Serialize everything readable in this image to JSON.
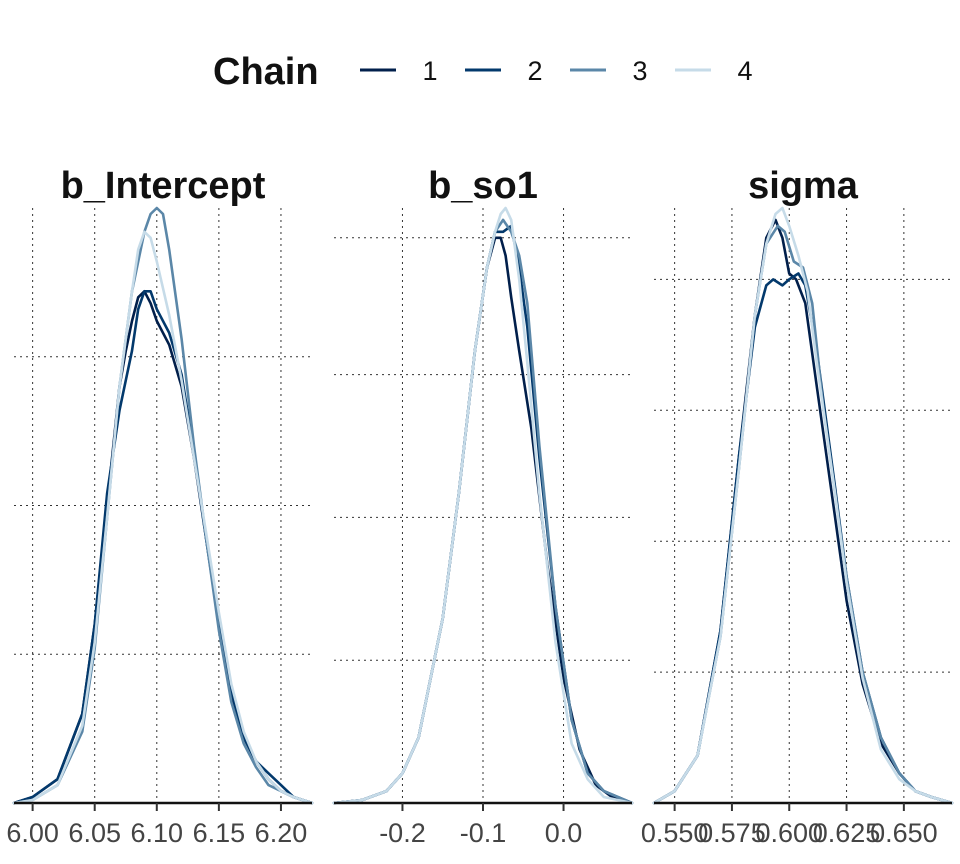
{
  "legend": {
    "title": "Chain",
    "items": [
      {
        "label": "1",
        "color": "#011f4b"
      },
      {
        "label": "2",
        "color": "#03396c"
      },
      {
        "label": "3",
        "color": "#5b87a8"
      },
      {
        "label": "4",
        "color": "#c6dbe8"
      }
    ]
  },
  "chart_data": [
    {
      "type": "line",
      "title": "b_Intercept",
      "xlabel": "",
      "ylabel": "",
      "xlim": [
        5.985,
        6.225
      ],
      "x_ticks": [
        6.0,
        6.05,
        6.1,
        6.15,
        6.2
      ],
      "x_tick_labels": [
        "6.00",
        "6.05",
        "6.10",
        "6.15",
        "6.20"
      ],
      "grid": true,
      "y_gridlines": [
        0.25,
        0.5,
        0.75
      ],
      "series": [
        {
          "name": "1",
          "x": [
            5.985,
            6.0,
            6.02,
            6.04,
            6.05,
            6.06,
            6.07,
            6.075,
            6.08,
            6.085,
            6.09,
            6.095,
            6.1,
            6.11,
            6.12,
            6.13,
            6.14,
            6.15,
            6.16,
            6.17,
            6.18,
            6.19,
            6.2,
            6.21,
            6.225
          ],
          "y": [
            0.0,
            0.01,
            0.04,
            0.15,
            0.3,
            0.5,
            0.7,
            0.76,
            0.81,
            0.85,
            0.86,
            0.84,
            0.81,
            0.77,
            0.7,
            0.58,
            0.44,
            0.3,
            0.18,
            0.11,
            0.07,
            0.04,
            0.02,
            0.01,
            0.0
          ]
        },
        {
          "name": "2",
          "x": [
            5.985,
            6.0,
            6.02,
            6.04,
            6.05,
            6.06,
            6.07,
            6.08,
            6.085,
            6.09,
            6.095,
            6.1,
            6.11,
            6.12,
            6.13,
            6.14,
            6.15,
            6.16,
            6.17,
            6.18,
            6.19,
            6.2,
            6.21,
            6.225
          ],
          "y": [
            0.0,
            0.01,
            0.04,
            0.15,
            0.3,
            0.52,
            0.66,
            0.76,
            0.83,
            0.86,
            0.86,
            0.83,
            0.79,
            0.72,
            0.59,
            0.44,
            0.3,
            0.19,
            0.11,
            0.07,
            0.05,
            0.03,
            0.01,
            0.0
          ]
        },
        {
          "name": "3",
          "x": [
            5.985,
            6.0,
            6.02,
            6.04,
            6.05,
            6.06,
            6.07,
            6.08,
            6.09,
            6.095,
            6.1,
            6.105,
            6.11,
            6.12,
            6.13,
            6.14,
            6.15,
            6.16,
            6.17,
            6.18,
            6.19,
            6.2,
            6.21,
            6.225
          ],
          "y": [
            0.0,
            0.005,
            0.03,
            0.12,
            0.26,
            0.48,
            0.7,
            0.86,
            0.96,
            0.99,
            1.0,
            0.99,
            0.93,
            0.78,
            0.6,
            0.44,
            0.29,
            0.17,
            0.1,
            0.06,
            0.03,
            0.02,
            0.01,
            0.0
          ]
        },
        {
          "name": "4",
          "x": [
            5.985,
            6.0,
            6.02,
            6.04,
            6.05,
            6.06,
            6.07,
            6.08,
            6.085,
            6.09,
            6.095,
            6.1,
            6.11,
            6.12,
            6.13,
            6.14,
            6.15,
            6.16,
            6.17,
            6.18,
            6.19,
            6.2,
            6.21,
            6.225
          ],
          "y": [
            0.0,
            0.005,
            0.03,
            0.13,
            0.27,
            0.48,
            0.7,
            0.86,
            0.93,
            0.96,
            0.95,
            0.91,
            0.82,
            0.71,
            0.58,
            0.45,
            0.32,
            0.2,
            0.12,
            0.07,
            0.04,
            0.02,
            0.01,
            0.0
          ]
        }
      ]
    },
    {
      "type": "line",
      "title": "b_so1",
      "xlabel": "",
      "ylabel": "",
      "xlim": [
        -0.285,
        0.085
      ],
      "x_ticks": [
        -0.2,
        -0.1,
        0.0
      ],
      "x_tick_labels": [
        "-0.2",
        "-0.1",
        "0.0"
      ],
      "grid": true,
      "y_gridlines": [
        0.24,
        0.48,
        0.72,
        0.95
      ],
      "series": [
        {
          "name": "1",
          "x": [
            -0.285,
            -0.25,
            -0.22,
            -0.2,
            -0.18,
            -0.15,
            -0.13,
            -0.11,
            -0.095,
            -0.085,
            -0.078,
            -0.072,
            -0.065,
            -0.055,
            -0.04,
            -0.02,
            0.0,
            0.02,
            0.04,
            0.06,
            0.085
          ],
          "y": [
            0.0,
            0.005,
            0.02,
            0.05,
            0.11,
            0.31,
            0.52,
            0.76,
            0.9,
            0.95,
            0.95,
            0.92,
            0.85,
            0.76,
            0.63,
            0.4,
            0.21,
            0.09,
            0.03,
            0.01,
            0.0
          ]
        },
        {
          "name": "2",
          "x": [
            -0.285,
            -0.25,
            -0.22,
            -0.2,
            -0.18,
            -0.15,
            -0.13,
            -0.11,
            -0.095,
            -0.085,
            -0.075,
            -0.065,
            -0.055,
            -0.045,
            -0.03,
            -0.01,
            0.01,
            0.03,
            0.05,
            0.085
          ],
          "y": [
            0.0,
            0.005,
            0.02,
            0.05,
            0.11,
            0.31,
            0.52,
            0.76,
            0.9,
            0.96,
            0.96,
            0.97,
            0.9,
            0.8,
            0.58,
            0.33,
            0.14,
            0.05,
            0.02,
            0.0
          ]
        },
        {
          "name": "3",
          "x": [
            -0.285,
            -0.25,
            -0.22,
            -0.2,
            -0.18,
            -0.15,
            -0.13,
            -0.11,
            -0.095,
            -0.085,
            -0.075,
            -0.065,
            -0.055,
            -0.045,
            -0.03,
            -0.01,
            0.01,
            0.03,
            0.05,
            0.085
          ],
          "y": [
            0.0,
            0.005,
            0.02,
            0.05,
            0.11,
            0.31,
            0.52,
            0.76,
            0.9,
            0.96,
            0.98,
            0.96,
            0.92,
            0.84,
            0.6,
            0.33,
            0.14,
            0.05,
            0.02,
            0.0
          ]
        },
        {
          "name": "4",
          "x": [
            -0.285,
            -0.25,
            -0.22,
            -0.2,
            -0.18,
            -0.15,
            -0.13,
            -0.11,
            -0.095,
            -0.085,
            -0.078,
            -0.072,
            -0.065,
            -0.055,
            -0.045,
            -0.03,
            -0.01,
            0.01,
            0.03,
            0.05,
            0.085
          ],
          "y": [
            0.0,
            0.005,
            0.02,
            0.05,
            0.11,
            0.31,
            0.52,
            0.76,
            0.9,
            0.96,
            0.99,
            1.0,
            0.98,
            0.88,
            0.74,
            0.52,
            0.27,
            0.1,
            0.04,
            0.01,
            0.0
          ]
        }
      ]
    },
    {
      "type": "line",
      "title": "sigma",
      "xlabel": "",
      "ylabel": "",
      "xlim": [
        0.541,
        0.671
      ],
      "x_ticks": [
        0.55,
        0.575,
        0.6,
        0.625,
        0.65
      ],
      "x_tick_labels": [
        "0.550",
        "0.575",
        "0.600",
        "0.625",
        "0.650"
      ],
      "grid": true,
      "y_gridlines": [
        0.22,
        0.44,
        0.66,
        0.88
      ],
      "series": [
        {
          "name": "1",
          "x": [
            0.541,
            0.55,
            0.56,
            0.57,
            0.578,
            0.585,
            0.59,
            0.594,
            0.597,
            0.6,
            0.603,
            0.607,
            0.612,
            0.62,
            0.625,
            0.632,
            0.64,
            0.648,
            0.655,
            0.662,
            0.671
          ],
          "y": [
            0.0,
            0.02,
            0.08,
            0.29,
            0.58,
            0.82,
            0.95,
            0.98,
            0.95,
            0.89,
            0.88,
            0.84,
            0.7,
            0.48,
            0.34,
            0.2,
            0.1,
            0.05,
            0.02,
            0.01,
            0.0
          ]
        },
        {
          "name": "2",
          "x": [
            0.541,
            0.55,
            0.56,
            0.57,
            0.578,
            0.585,
            0.59,
            0.593,
            0.597,
            0.6,
            0.604,
            0.607,
            0.612,
            0.62,
            0.625,
            0.632,
            0.64,
            0.648,
            0.655,
            0.662,
            0.671
          ],
          "y": [
            0.0,
            0.02,
            0.08,
            0.29,
            0.58,
            0.8,
            0.87,
            0.88,
            0.87,
            0.88,
            0.89,
            0.87,
            0.76,
            0.53,
            0.38,
            0.22,
            0.11,
            0.05,
            0.02,
            0.01,
            0.0
          ]
        },
        {
          "name": "3",
          "x": [
            0.541,
            0.55,
            0.56,
            0.57,
            0.578,
            0.585,
            0.59,
            0.595,
            0.598,
            0.602,
            0.606,
            0.61,
            0.615,
            0.62,
            0.625,
            0.632,
            0.64,
            0.648,
            0.655,
            0.662,
            0.671
          ],
          "y": [
            0.0,
            0.02,
            0.08,
            0.28,
            0.56,
            0.82,
            0.94,
            0.97,
            0.96,
            0.91,
            0.9,
            0.84,
            0.66,
            0.52,
            0.38,
            0.22,
            0.11,
            0.05,
            0.02,
            0.01,
            0.0
          ]
        },
        {
          "name": "4",
          "x": [
            0.541,
            0.55,
            0.56,
            0.57,
            0.578,
            0.585,
            0.59,
            0.594,
            0.597,
            0.6,
            0.604,
            0.608,
            0.612,
            0.62,
            0.625,
            0.632,
            0.64,
            0.648,
            0.655,
            0.662,
            0.671
          ],
          "y": [
            0.0,
            0.02,
            0.08,
            0.28,
            0.56,
            0.82,
            0.94,
            0.99,
            1.0,
            0.97,
            0.92,
            0.86,
            0.74,
            0.52,
            0.37,
            0.21,
            0.09,
            0.04,
            0.02,
            0.01,
            0.0
          ]
        }
      ]
    }
  ]
}
